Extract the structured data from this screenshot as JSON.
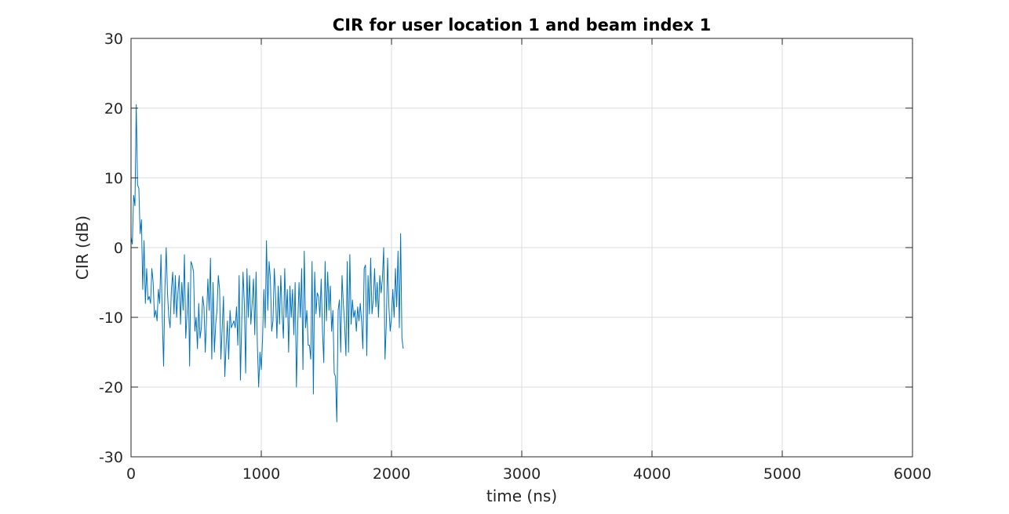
{
  "chart_data": {
    "type": "line",
    "title": "CIR for user location 1 and beam index 1",
    "xlabel": "time (ns)",
    "ylabel": "CIR (dB)",
    "xlim": [
      0,
      6000
    ],
    "ylim": [
      -30,
      30
    ],
    "xticks": [
      0,
      1000,
      2000,
      3000,
      4000,
      5000,
      6000
    ],
    "xtick_labels": [
      "0",
      "1000",
      "2000",
      "3000",
      "4000",
      "5000",
      "6000"
    ],
    "yticks": [
      -30,
      -20,
      -10,
      0,
      10,
      20,
      30
    ],
    "ytick_labels": [
      "-30",
      "-20",
      "-10",
      "0",
      "10",
      "20",
      "30"
    ],
    "grid": true,
    "line_color": "#0072bd",
    "x_step": 10,
    "series": [
      {
        "values": [
          1.5,
          0.5,
          7.5,
          6.0,
          20.5,
          9.0,
          8.5,
          2.0,
          4.0,
          -6.0,
          1.0,
          -8.0,
          -3.0,
          -7.5,
          -7.0,
          -8.0,
          -3.0,
          -5.0,
          -10.0,
          -9.0,
          -10.5,
          -6.0,
          -8.0,
          -1.0,
          -10.0,
          -17.0,
          -6.0,
          0.0,
          -6.5,
          -10.0,
          -11.5,
          -6.0,
          -3.5,
          -9.5,
          -4.0,
          -10.0,
          -6.5,
          -4.0,
          -11.0,
          -5.0,
          -9.0,
          -1.0,
          -13.0,
          -9.5,
          -5.0,
          -17.0,
          -2.0,
          -2.5,
          -3.5,
          -12.0,
          -10.0,
          -14.5,
          -8.0,
          -13.0,
          -11.5,
          -7.0,
          -8.5,
          -15.0,
          -10.0,
          -4.5,
          -9.0,
          -1.5,
          -16.0,
          -5.0,
          -15.0,
          -11.0,
          -9.0,
          -4.0,
          -6.0,
          -16.0,
          -11.5,
          -7.0,
          -18.5,
          -14.0,
          -10.5,
          -16.0,
          -9.0,
          -11.5,
          -11.0,
          -10.5,
          -11.5,
          -8.5,
          -14.0,
          -4.0,
          -19.0,
          -10.5,
          -3.5,
          -8.0,
          -18.0,
          -3.0,
          -10.0,
          -4.0,
          -11.0,
          -8.0,
          -4.5,
          -12.5,
          -3.5,
          -14.0,
          -20.0,
          -15.0,
          -17.5,
          -13.0,
          -6.0,
          -11.5,
          1.0,
          -9.0,
          -2.0,
          -4.5,
          -12.0,
          -10.5,
          -3.0,
          -7.0,
          -13.0,
          -5.5,
          -11.0,
          -4.0,
          -9.5,
          -13.0,
          -3.0,
          -10.0,
          -6.0,
          -15.0,
          -5.5,
          -10.0,
          -6.0,
          -12.5,
          -5.0,
          -20.0,
          -11.0,
          -5.0,
          -10.0,
          -3.0,
          -17.5,
          -0.5,
          -11.5,
          -9.0,
          -14.0,
          -14.0,
          -16.0,
          -2.0,
          -21.0,
          -3.5,
          -9.5,
          -6.5,
          -7.0,
          -10.0,
          -4.5,
          -12.0,
          -16.5,
          -2.0,
          -10.5,
          -3.5,
          -9.0,
          -5.5,
          -12.0,
          -9.0,
          -18.0,
          -18.5,
          -25.0,
          -9.0,
          -7.5,
          -15.0,
          -4.0,
          -8.0,
          -11.0,
          -15.5,
          -2.0,
          -15.0,
          -1.0,
          -11.0,
          -7.5,
          -10.0,
          -9.0,
          -12.0,
          -8.5,
          -10.5,
          -8.0,
          -10.5,
          -14.5,
          -3.0,
          -2.5,
          -15.5,
          -4.0,
          -9.5,
          -1.5,
          -9.5,
          -7.5,
          -3.0,
          -8.5,
          -5.0,
          -10.0,
          -4.0,
          -6.5,
          -4.5,
          0.0,
          -16.0,
          -11.0,
          -1.5,
          -8.5,
          -12.0,
          -10.0,
          -6.0,
          -10.0,
          -3.0,
          -8.5,
          -0.5,
          -11.5,
          2.0,
          -13.0,
          -14.5
        ]
      }
    ]
  }
}
